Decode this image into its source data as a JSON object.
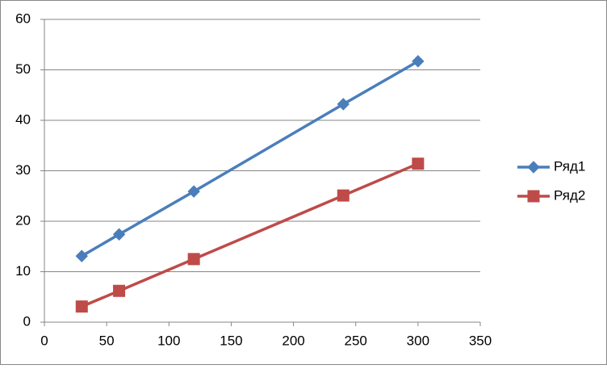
{
  "chart_data": {
    "type": "scatter-line",
    "x": [
      30,
      60,
      120,
      240,
      300
    ],
    "series": [
      {
        "name": "Ряд1",
        "color": "#4a7ebb",
        "marker": "diamond",
        "values": [
          13.1,
          17.4,
          25.9,
          43.2,
          51.7
        ]
      },
      {
        "name": "Ряд2",
        "color": "#be4b48",
        "marker": "square",
        "values": [
          3.1,
          6.2,
          12.5,
          25.1,
          31.4
        ]
      }
    ],
    "xlim": [
      0,
      350
    ],
    "xticks": [
      0,
      50,
      100,
      150,
      200,
      250,
      300,
      350
    ],
    "ylim": [
      0,
      60
    ],
    "yticks": [
      0,
      10,
      20,
      30,
      40,
      50,
      60
    ],
    "grid": true,
    "legend": "right"
  }
}
